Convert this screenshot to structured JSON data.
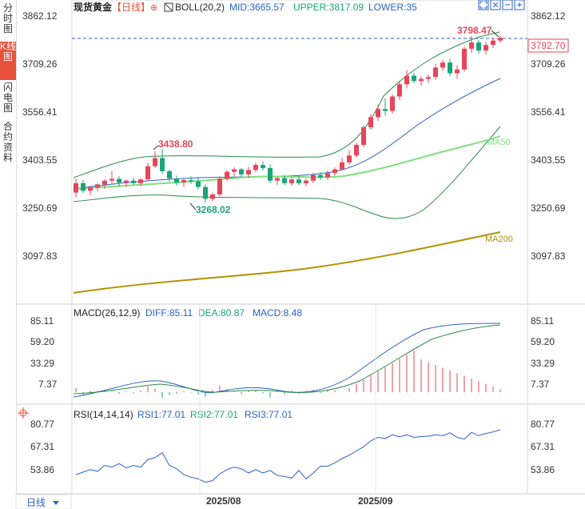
{
  "tabs": [
    "分时图",
    "K线图",
    "闪电图",
    "合约资料"
  ],
  "active_tab": 1,
  "header": {
    "symbol": "现货黄金",
    "period_tag": "【日线】",
    "indicator": "BOLL(20,2)",
    "mid": "MID:3665.57",
    "upper": "UPPER:3817.09",
    "lower": "LOWER:35"
  },
  "price_axis": {
    "ticks": [
      "3862.12",
      "3709.26",
      "3556.41",
      "3403.55",
      "3250.69",
      "3097.83"
    ]
  },
  "current_price": "3792.70",
  "annotations": {
    "high_recent": "3798.47",
    "high_mid": "3438.80",
    "low_mid": "3268.02"
  },
  "ma_labels": {
    "ma50": "MA50",
    "ma200": "MA200"
  },
  "macd": {
    "title": "MACD(26,12,9)",
    "diff": "DIFF:85.11",
    "dea": "DEA:80.87",
    "macd": "MACD:8.48",
    "ticks": [
      "85.11",
      "59.20",
      "33.29",
      "7.37"
    ]
  },
  "rsi": {
    "title": "RSI(14,14,14)",
    "rsi1": "RSI1:77.01",
    "rsi2": "RSI2:77.01",
    "rsi3": "RSI3:77.01",
    "ticks": [
      "80.77",
      "67.31",
      "53.86"
    ]
  },
  "x_axis": {
    "labels": [
      "2025/08",
      "2025/09"
    ]
  },
  "period_selector": "日线",
  "colors": {
    "up": "#e8455a",
    "down": "#1aa579",
    "boll": "#2b8a4a",
    "mid": "#2a63c7",
    "ma50": "#7fe07f",
    "ma200": "#b39200",
    "accent": "#e8513a"
  },
  "chart_data": {
    "type": "candlestick",
    "price_axis_ticks": [
      3862.12,
      3709.26,
      3556.41,
      3403.55,
      3250.69,
      3097.83
    ],
    "ylim": [
      3000,
      3950
    ],
    "candles": [
      [
        3300,
        3345,
        3285,
        3330
      ],
      [
        3330,
        3340,
        3298,
        3306
      ],
      [
        3306,
        3322,
        3292,
        3316
      ],
      [
        3316,
        3330,
        3305,
        3326
      ],
      [
        3326,
        3342,
        3312,
        3338
      ],
      [
        3338,
        3368,
        3326,
        3344
      ],
      [
        3344,
        3352,
        3320,
        3332
      ],
      [
        3332,
        3342,
        3318,
        3338
      ],
      [
        3338,
        3348,
        3325,
        3330
      ],
      [
        3330,
        3346,
        3320,
        3342
      ],
      [
        3342,
        3395,
        3336,
        3384
      ],
      [
        3384,
        3432,
        3378,
        3410
      ],
      [
        3410,
        3438.8,
        3360,
        3368
      ],
      [
        3368,
        3374,
        3335,
        3345
      ],
      [
        3345,
        3354,
        3322,
        3332
      ],
      [
        3332,
        3346,
        3318,
        3340
      ],
      [
        3340,
        3352,
        3328,
        3336
      ],
      [
        3336,
        3350,
        3310,
        3318
      ],
      [
        3318,
        3326,
        3268.02,
        3280
      ],
      [
        3280,
        3300,
        3272,
        3294
      ],
      [
        3294,
        3352,
        3288,
        3344
      ],
      [
        3344,
        3372,
        3338,
        3366
      ],
      [
        3366,
        3380,
        3352,
        3374
      ],
      [
        3374,
        3378,
        3350,
        3358
      ],
      [
        3358,
        3382,
        3346,
        3372
      ],
      [
        3372,
        3395,
        3366,
        3388
      ],
      [
        3388,
        3398,
        3370,
        3378
      ],
      [
        3378,
        3390,
        3330,
        3338
      ],
      [
        3338,
        3350,
        3325,
        3346
      ],
      [
        3346,
        3356,
        3324,
        3330
      ],
      [
        3330,
        3350,
        3322,
        3342
      ],
      [
        3342,
        3352,
        3324,
        3330
      ],
      [
        3330,
        3344,
        3320,
        3338
      ],
      [
        3338,
        3362,
        3330,
        3356
      ],
      [
        3356,
        3365,
        3340,
        3348
      ],
      [
        3348,
        3370,
        3340,
        3362
      ],
      [
        3362,
        3380,
        3354,
        3374
      ],
      [
        3374,
        3410,
        3370,
        3396
      ],
      [
        3396,
        3435,
        3390,
        3418
      ],
      [
        3418,
        3460,
        3412,
        3452
      ],
      [
        3452,
        3515,
        3445,
        3508
      ],
      [
        3508,
        3550,
        3500,
        3540
      ],
      [
        3540,
        3580,
        3528,
        3566
      ],
      [
        3566,
        3600,
        3545,
        3560
      ],
      [
        3560,
        3612,
        3552,
        3606
      ],
      [
        3606,
        3655,
        3595,
        3645
      ],
      [
        3645,
        3690,
        3632,
        3672
      ],
      [
        3672,
        3680,
        3648,
        3655
      ],
      [
        3655,
        3670,
        3640,
        3662
      ],
      [
        3662,
        3676,
        3650,
        3668
      ],
      [
        3668,
        3710,
        3660,
        3698
      ],
      [
        3698,
        3722,
        3688,
        3714
      ],
      [
        3714,
        3726,
        3670,
        3680
      ],
      [
        3680,
        3705,
        3662,
        3692
      ],
      [
        3692,
        3765,
        3685,
        3758
      ],
      [
        3758,
        3798.47,
        3744,
        3778
      ],
      [
        3778,
        3786,
        3742,
        3752
      ],
      [
        3752,
        3780,
        3740,
        3770
      ],
      [
        3770,
        3792,
        3760,
        3784
      ],
      [
        3784,
        3798.47,
        3776,
        3792.7
      ]
    ],
    "series_names": [
      "MID",
      "UPPER",
      "LOWER",
      "MA50",
      "MA200"
    ],
    "macd_axis_ticks": [
      85.11,
      59.2,
      33.29,
      7.37
    ],
    "macd_last": {
      "diff": 85.11,
      "dea": 80.87,
      "macd": 8.48
    },
    "rsi_axis_ticks": [
      80.77,
      67.31,
      53.86
    ],
    "rsi_last": {
      "rsi1": 77.01,
      "rsi2": 77.01,
      "rsi3": 77.01
    },
    "rsi": [
      50.5,
      52,
      53.5,
      52.5,
      56,
      55,
      57,
      54.5,
      56,
      55,
      59.5,
      60.5,
      63.5,
      56,
      54,
      50.5,
      49,
      48,
      46,
      47,
      51,
      53.5,
      55,
      54,
      51.5,
      53.5,
      51.5,
      53,
      50,
      49.5,
      48.5,
      53,
      48,
      51.5,
      55.5,
      55.5,
      57.5,
      60,
      62,
      64.5,
      67,
      70.5,
      72.5,
      71.8,
      74,
      72.8,
      74,
      72.5,
      73,
      73.2,
      74,
      73.5,
      75.2,
      72.5,
      71.5,
      75.5,
      73.5,
      74.8,
      75.7,
      77.01
    ],
    "x_labels": [
      "2025/08",
      "2025/09"
    ]
  }
}
